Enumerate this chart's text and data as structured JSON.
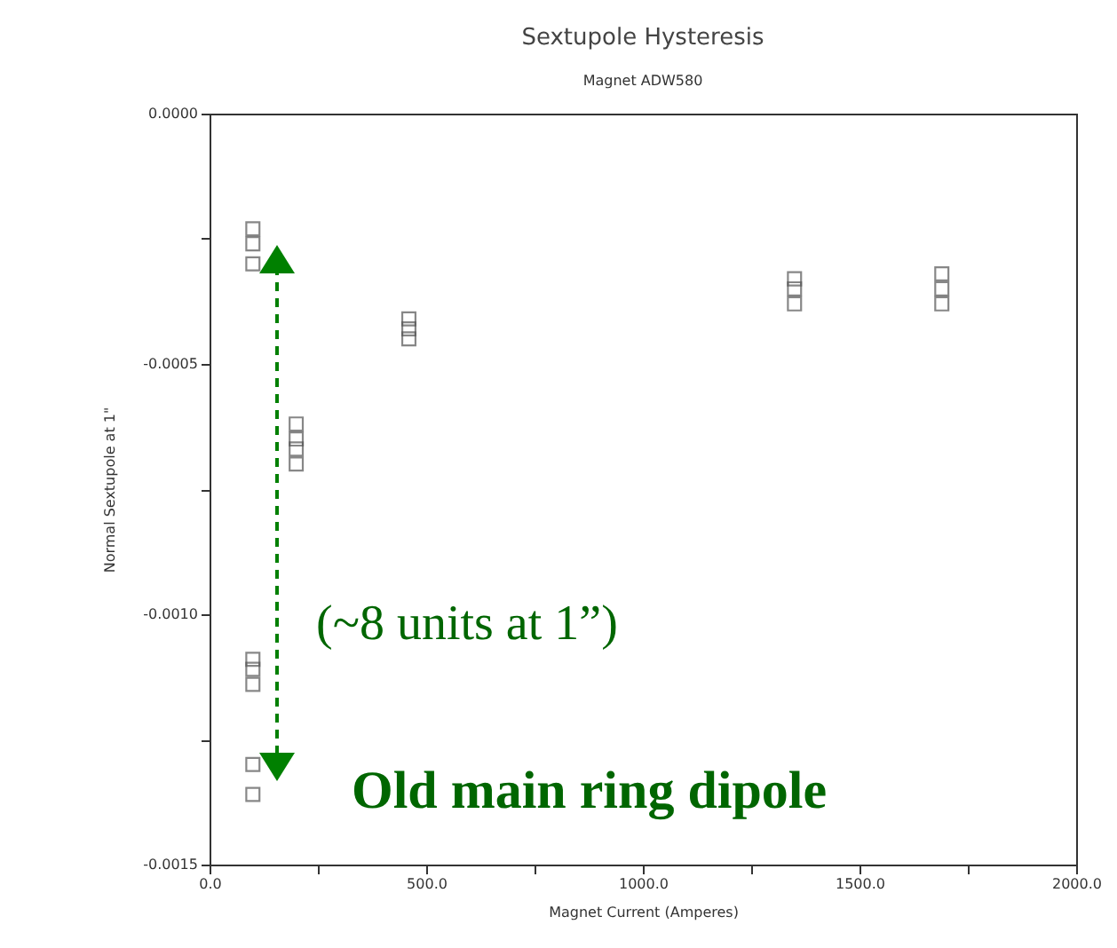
{
  "chart_data": {
    "type": "scatter",
    "title": "Sextupole Hysteresis",
    "subtitle": "Magnet ADW580",
    "xlabel": "Magnet Current (Amperes)",
    "ylabel": "Normal Sextupole at 1\"",
    "marker": "square",
    "series": [
      {
        "color": "#555555",
        "x": [
          100,
          100,
          100,
          100,
          100,
          100,
          100,
          100,
          200,
          200,
          200,
          200,
          460,
          460,
          460,
          1350,
          1350,
          1350,
          1690,
          1690,
          1690
        ],
        "values": [
          -0.00023,
          -0.00026,
          -0.0003,
          -0.00109,
          -0.00111,
          -0.00114,
          -0.0013,
          -0.00136,
          -0.00062,
          -0.00065,
          -0.00067,
          -0.0007,
          -0.00041,
          -0.00043,
          -0.00045,
          -0.00033,
          -0.00035,
          -0.00038,
          -0.00032,
          -0.00035,
          -0.00038
        ]
      }
    ],
    "xlim": [
      0,
      2000
    ],
    "xticks": [
      {
        "value": 0,
        "label": "0.0"
      },
      {
        "value": 250,
        "label": null
      },
      {
        "value": 500,
        "label": "500.0"
      },
      {
        "value": 750,
        "label": null
      },
      {
        "value": 1000,
        "label": "1000.0"
      },
      {
        "value": 1250,
        "label": null
      },
      {
        "value": 1500,
        "label": "1500.0"
      },
      {
        "value": 1750,
        "label": null
      },
      {
        "value": 2000,
        "label": "2000.0"
      }
    ],
    "ylim": [
      -0.0015,
      0
    ],
    "yticks": [
      {
        "value": -0.0015,
        "label": "-0.0015"
      },
      {
        "value": -0.00125,
        "label": null
      },
      {
        "value": -0.001,
        "label": "-0.0010"
      },
      {
        "value": -0.00075,
        "label": null
      },
      {
        "value": -0.0005,
        "label": "-0.0005"
      },
      {
        "value": -0.00025,
        "label": null
      },
      {
        "value": 0,
        "label": "0.0000"
      }
    ],
    "annotations": [
      "(~8 units at 1”)",
      "Old main ring dipole"
    ]
  }
}
